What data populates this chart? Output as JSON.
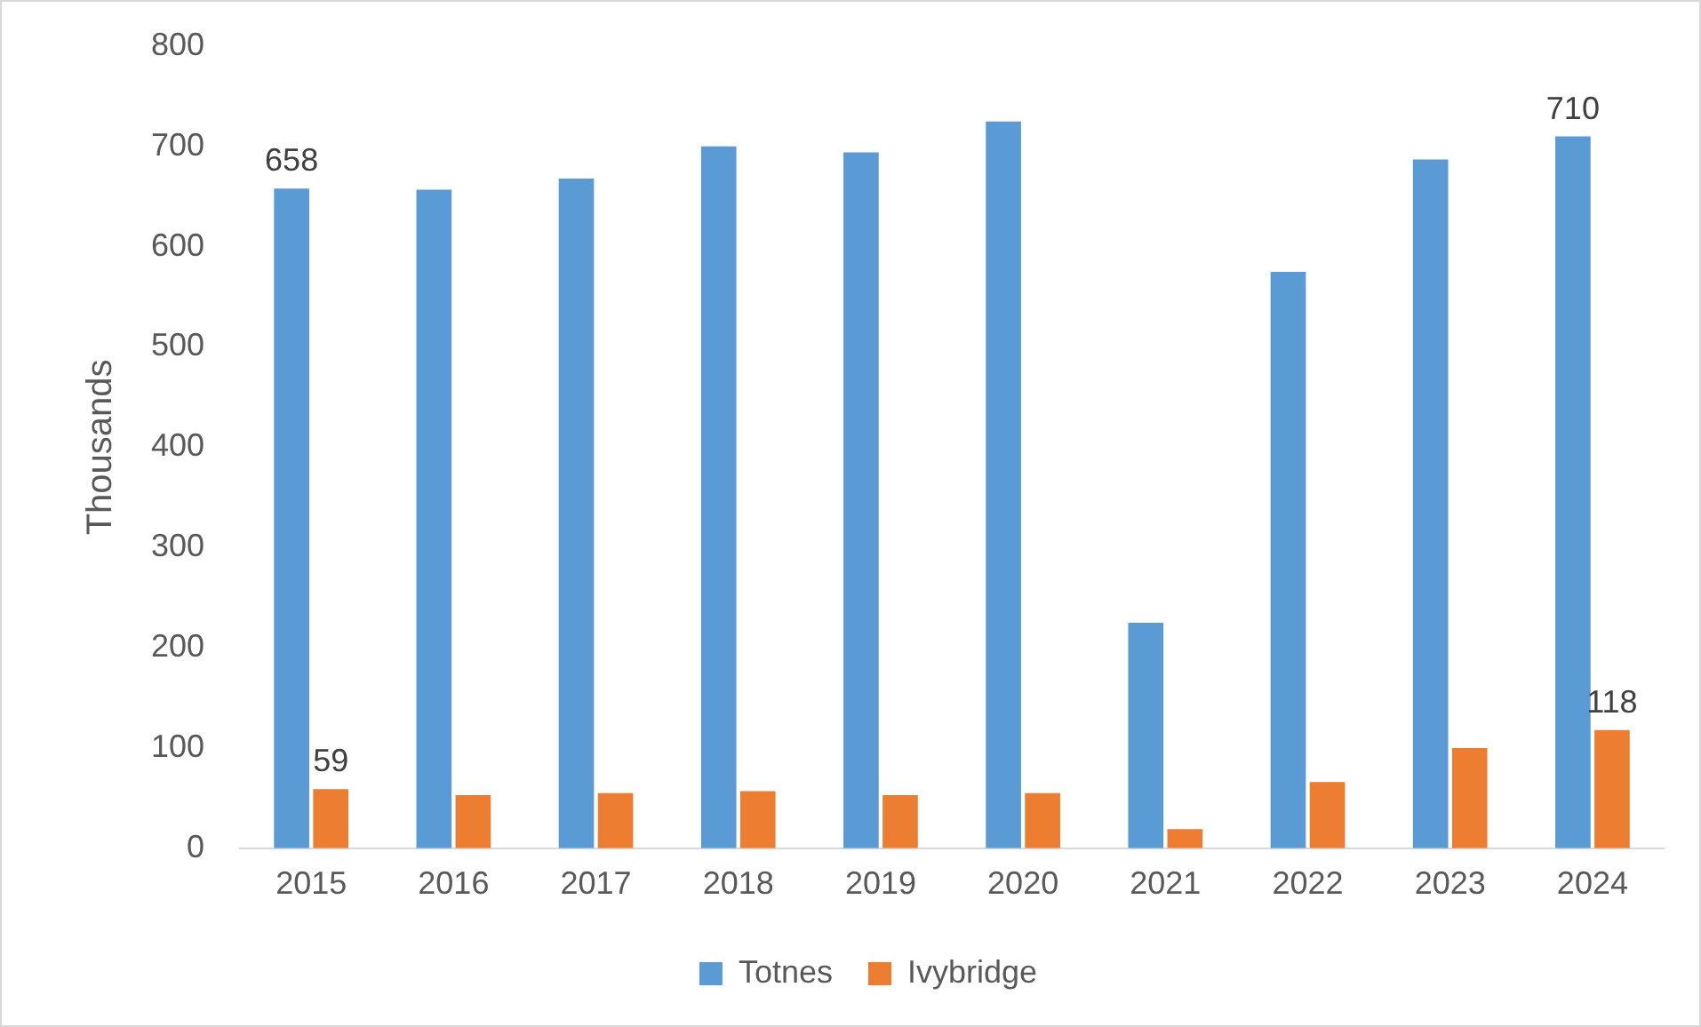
{
  "chart_data": {
    "type": "bar",
    "ylabel": "Thousands",
    "categories": [
      "2015",
      "2016",
      "2017",
      "2018",
      "2019",
      "2020",
      "2021",
      "2022",
      "2023",
      "2024"
    ],
    "series": [
      {
        "name": "Totnes",
        "color": "#5b9bd5",
        "values": [
          658,
          657,
          668,
          700,
          694,
          725,
          225,
          575,
          687,
          710
        ],
        "value_labels": [
          "658",
          null,
          null,
          null,
          null,
          null,
          null,
          null,
          null,
          "710"
        ]
      },
      {
        "name": "Ivybridge",
        "color": "#ed7d31",
        "values": [
          59,
          53,
          55,
          57,
          53,
          55,
          19,
          66,
          100,
          118
        ],
        "value_labels": [
          "59",
          null,
          null,
          null,
          null,
          null,
          null,
          null,
          null,
          "118"
        ]
      }
    ],
    "ylim": [
      0,
      800
    ],
    "yticks": [
      0,
      100,
      200,
      300,
      400,
      500,
      600,
      700,
      800
    ],
    "grid": false,
    "legend": "bottom"
  }
}
